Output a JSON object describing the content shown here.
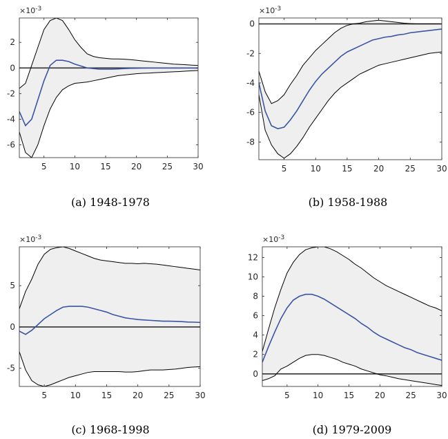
{
  "chart_data": [
    {
      "type": "line",
      "caption": "(a) 1948-1978",
      "exponent": {
        "base": "×10",
        "power": "-3"
      },
      "x": [
        1,
        2,
        3,
        4,
        5,
        6,
        7,
        8,
        9,
        10,
        11,
        12,
        13,
        14,
        15,
        16,
        17,
        18,
        19,
        20,
        21,
        22,
        23,
        24,
        25,
        26,
        27,
        28,
        29,
        30
      ],
      "xlim": [
        1,
        30
      ],
      "ylim": [
        -7,
        3.9
      ],
      "xticks": [
        5,
        10,
        15,
        20,
        25,
        30
      ],
      "yticks": [
        -6,
        -4,
        -2,
        0,
        2
      ],
      "zero_line": true,
      "band_color": "#efefef",
      "median_color": "#3a54a4",
      "series": [
        {
          "values": [
            -3.4,
            -4.5,
            -4.0,
            -2.5,
            -1.0,
            0.2,
            0.6,
            0.6,
            0.5,
            0.3,
            0.15,
            0.0,
            -0.05,
            -0.1,
            -0.1,
            -0.1,
            -0.08,
            -0.05,
            -0.03,
            -0.02,
            -0.01,
            0,
            0,
            0,
            0,
            0,
            0,
            0,
            0,
            0
          ]
        },
        {
          "values": [
            -1.6,
            -1.2,
            0.2,
            1.6,
            3.0,
            3.7,
            3.9,
            3.7,
            3.0,
            2.2,
            1.6,
            1.1,
            0.9,
            0.8,
            0.75,
            0.7,
            0.7,
            0.68,
            0.65,
            0.6,
            0.55,
            0.5,
            0.45,
            0.4,
            0.35,
            0.3,
            0.28,
            0.25,
            0.22,
            0.2
          ]
        },
        {
          "values": [
            -5.0,
            -6.6,
            -7.0,
            -6.0,
            -4.5,
            -3.2,
            -2.3,
            -1.7,
            -1.4,
            -1.2,
            -1.15,
            -1.1,
            -1.0,
            -0.9,
            -0.8,
            -0.7,
            -0.6,
            -0.55,
            -0.5,
            -0.45,
            -0.42,
            -0.4,
            -0.37,
            -0.35,
            -0.32,
            -0.3,
            -0.28,
            -0.25,
            -0.22,
            -0.2
          ]
        }
      ]
    },
    {
      "type": "line",
      "caption": "(b) 1958-1988",
      "exponent": {
        "base": "×10",
        "power": "-3"
      },
      "x": [
        1,
        2,
        3,
        4,
        5,
        6,
        7,
        8,
        9,
        10,
        11,
        12,
        13,
        14,
        15,
        16,
        17,
        18,
        19,
        20,
        21,
        22,
        23,
        24,
        25,
        26,
        27,
        28,
        29,
        30
      ],
      "xlim": [
        1,
        30
      ],
      "ylim": [
        -9.2,
        0.4
      ],
      "xticks": [
        5,
        10,
        15,
        20,
        25,
        30
      ],
      "yticks": [
        -8,
        -6,
        -4,
        -2,
        0
      ],
      "zero_line": true,
      "band_color": "#efefef",
      "median_color": "#3a54a4",
      "series": [
        {
          "values": [
            -4.0,
            -5.9,
            -6.9,
            -7.1,
            -7.0,
            -6.5,
            -5.9,
            -5.2,
            -4.5,
            -3.9,
            -3.4,
            -3.0,
            -2.6,
            -2.2,
            -1.9,
            -1.7,
            -1.5,
            -1.3,
            -1.1,
            -1.0,
            -0.9,
            -0.85,
            -0.75,
            -0.7,
            -0.6,
            -0.55,
            -0.5,
            -0.45,
            -0.4,
            -0.35
          ]
        },
        {
          "values": [
            -3.2,
            -4.6,
            -5.4,
            -5.2,
            -4.8,
            -4.1,
            -3.5,
            -2.8,
            -2.3,
            -1.8,
            -1.4,
            -1.0,
            -0.6,
            -0.3,
            -0.1,
            0.0,
            0.05,
            0.15,
            0.2,
            0.25,
            0.2,
            0.15,
            0.1,
            0.05,
            0.02,
            0,
            0,
            0,
            0,
            0
          ]
        },
        {
          "values": [
            -4.8,
            -7.2,
            -8.2,
            -8.8,
            -9.1,
            -8.8,
            -8.3,
            -7.7,
            -7.0,
            -6.4,
            -5.8,
            -5.2,
            -4.7,
            -4.3,
            -4.0,
            -3.7,
            -3.4,
            -3.2,
            -3.0,
            -2.8,
            -2.7,
            -2.6,
            -2.5,
            -2.4,
            -2.3,
            -2.2,
            -2.1,
            -2.0,
            -1.95,
            -1.9
          ]
        }
      ]
    },
    {
      "type": "line",
      "caption": "(c) 1968-1998",
      "exponent": {
        "base": "×10",
        "power": "-3"
      },
      "x": [
        1,
        2,
        3,
        4,
        5,
        6,
        7,
        8,
        9,
        10,
        11,
        12,
        13,
        14,
        15,
        16,
        17,
        18,
        19,
        20,
        21,
        22,
        23,
        24,
        25,
        26,
        27,
        28,
        29,
        30
      ],
      "xlim": [
        1,
        30
      ],
      "ylim": [
        -7.2,
        9.7
      ],
      "xticks": [
        5,
        10,
        15,
        20,
        25,
        30
      ],
      "yticks": [
        -5,
        0,
        5
      ],
      "zero_line": true,
      "band_color": "#efefef",
      "median_color": "#3a54a4",
      "series": [
        {
          "values": [
            -0.5,
            -0.9,
            -0.4,
            0.3,
            1.0,
            1.5,
            2.0,
            2.4,
            2.5,
            2.5,
            2.5,
            2.4,
            2.2,
            2.0,
            1.8,
            1.5,
            1.3,
            1.1,
            1.0,
            0.9,
            0.85,
            0.8,
            0.75,
            0.7,
            0.7,
            0.68,
            0.65,
            0.6,
            0.58,
            0.55
          ]
        },
        {
          "values": [
            2.2,
            4.3,
            5.8,
            7.6,
            8.8,
            9.4,
            9.6,
            9.7,
            9.5,
            9.2,
            8.9,
            8.6,
            8.3,
            8.1,
            8.0,
            7.9,
            7.8,
            7.7,
            7.7,
            7.65,
            7.7,
            7.65,
            7.6,
            7.5,
            7.4,
            7.3,
            7.2,
            7.1,
            7.0,
            6.9
          ]
        },
        {
          "values": [
            -3.0,
            -5.2,
            -6.5,
            -7.0,
            -7.2,
            -7.0,
            -6.7,
            -6.4,
            -6.1,
            -5.9,
            -5.7,
            -5.5,
            -5.4,
            -5.4,
            -5.4,
            -5.4,
            -5.4,
            -5.45,
            -5.45,
            -5.4,
            -5.3,
            -5.2,
            -5.2,
            -5.2,
            -5.15,
            -5.1,
            -5.0,
            -4.9,
            -4.85,
            -4.8
          ]
        }
      ]
    },
    {
      "type": "line",
      "caption": "(d) 1979-2009",
      "exponent": {
        "base": "×10",
        "power": "-3"
      },
      "x": [
        1,
        2,
        3,
        4,
        5,
        6,
        7,
        8,
        9,
        10,
        11,
        12,
        13,
        14,
        15,
        16,
        17,
        18,
        19,
        20,
        21,
        22,
        23,
        24,
        25,
        26,
        27,
        28,
        29,
        30
      ],
      "xlim": [
        1,
        30
      ],
      "ylim": [
        -1.3,
        13.1
      ],
      "xticks": [
        5,
        10,
        15,
        20,
        25,
        30
      ],
      "yticks": [
        0,
        2,
        4,
        6,
        8,
        10,
        12
      ],
      "zero_line": true,
      "band_color": "#efefef",
      "median_color": "#3a54a4",
      "series": [
        {
          "values": [
            1.2,
            2.8,
            4.3,
            5.7,
            6.8,
            7.6,
            8.0,
            8.2,
            8.2,
            8.0,
            7.7,
            7.3,
            6.9,
            6.5,
            6.1,
            5.7,
            5.2,
            4.8,
            4.3,
            3.9,
            3.6,
            3.3,
            3.0,
            2.7,
            2.5,
            2.2,
            2.0,
            1.8,
            1.6,
            1.4
          ]
        },
        {
          "values": [
            2.3,
            4.6,
            6.8,
            8.7,
            10.4,
            11.5,
            12.3,
            12.8,
            13.0,
            13.1,
            13.1,
            12.9,
            12.6,
            12.2,
            11.8,
            11.3,
            10.9,
            10.4,
            9.9,
            9.5,
            9.1,
            8.8,
            8.5,
            8.2,
            7.9,
            7.6,
            7.3,
            7.0,
            6.8,
            6.5
          ]
        },
        {
          "values": [
            -0.7,
            -0.5,
            -0.2,
            0.5,
            0.8,
            1.2,
            1.6,
            1.9,
            2.0,
            2.0,
            1.9,
            1.7,
            1.5,
            1.2,
            1.0,
            0.8,
            0.5,
            0.3,
            0.1,
            -0.1,
            -0.2,
            -0.35,
            -0.5,
            -0.6,
            -0.7,
            -0.8,
            -0.9,
            -1.0,
            -1.1,
            -1.2
          ]
        }
      ]
    }
  ]
}
